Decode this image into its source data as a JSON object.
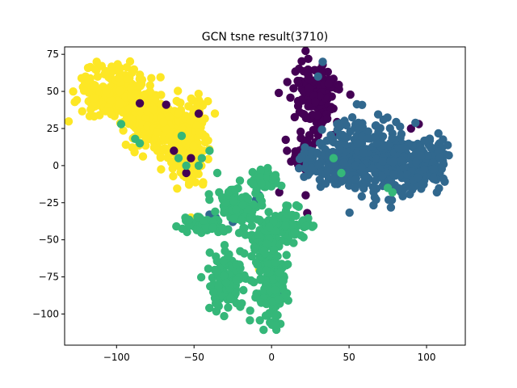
{
  "chart_data": {
    "type": "scatter",
    "title": "GCN tsne result(3710)",
    "xlabel": "",
    "ylabel": "",
    "xlim": [
      -133.5,
      125
    ],
    "ylim": [
      -121,
      80
    ],
    "xticks": [
      -100,
      -50,
      0,
      50,
      100
    ],
    "yticks": [
      75,
      50,
      25,
      0,
      -25,
      -50,
      -75,
      -100
    ],
    "xtick_labels": [
      "−100",
      "−50",
      "0",
      "50",
      "100"
    ],
    "ytick_labels": [
      "75",
      "50",
      "25",
      "0",
      "−25",
      "−50",
      "−75",
      "−100"
    ],
    "grid": false,
    "legend": "none",
    "series": [
      {
        "color": "#fde725",
        "clusters": [
          {
            "cx": -100,
            "cy": 48,
            "sx": 11,
            "sy": 8,
            "n": 260
          },
          {
            "cx": -78,
            "cy": 30,
            "sx": 9,
            "sy": 9,
            "n": 200
          },
          {
            "cx": -60,
            "cy": 20,
            "sx": 7,
            "sy": 10,
            "n": 140
          },
          {
            "cx": -52,
            "cy": 2,
            "sx": 5,
            "sy": 7,
            "n": 70
          },
          {
            "cx": -48,
            "cy": 30,
            "sx": 4,
            "sy": 7,
            "n": 40
          }
        ],
        "points": [
          [
            -120,
            60
          ],
          [
            -118,
            58
          ],
          [
            -52,
            -35
          ],
          [
            -8,
            -70
          ],
          [
            -47,
            22
          ],
          [
            -44,
            10
          ]
        ]
      },
      {
        "color": "#440154",
        "clusters": [
          {
            "cx": 28,
            "cy": 48,
            "sx": 7,
            "sy": 10,
            "n": 170
          },
          {
            "cx": 20,
            "cy": 10,
            "sx": 5,
            "sy": 5,
            "n": 30
          }
        ],
        "points": [
          [
            -63,
            10
          ],
          [
            -55,
            -5
          ],
          [
            5,
            -18
          ],
          [
            23,
            -32
          ],
          [
            -52,
            5
          ],
          [
            -40,
            -38
          ],
          [
            -85,
            42
          ],
          [
            -68,
            41
          ],
          [
            90,
            25
          ],
          [
            95,
            28
          ],
          [
            80,
            12
          ],
          [
            15,
            5
          ],
          [
            22,
            -20
          ],
          [
            67,
            1
          ],
          [
            -47,
            35
          ],
          [
            10,
            10
          ],
          [
            33,
            68
          ]
        ]
      },
      {
        "color": "#31688e",
        "clusters": [
          {
            "cx": 50,
            "cy": 6,
            "sx": 9,
            "sy": 11,
            "n": 180
          },
          {
            "cx": 70,
            "cy": 5,
            "sx": 10,
            "sy": 12,
            "n": 170
          },
          {
            "cx": 95,
            "cy": 0,
            "sx": 9,
            "sy": 9,
            "n": 180
          },
          {
            "cx": 30,
            "cy": 2,
            "sx": 6,
            "sy": 6,
            "n": 50
          }
        ],
        "points": [
          [
            33,
            70
          ],
          [
            30,
            60
          ],
          [
            -8,
            -20
          ],
          [
            -25,
            -38
          ],
          [
            -40,
            -33
          ],
          [
            5,
            -88
          ],
          [
            2,
            -95
          ],
          [
            -36,
            -35
          ],
          [
            -10,
            -23
          ]
        ]
      },
      {
        "color": "#35b779",
        "clusters": [
          {
            "cx": -22,
            "cy": -28,
            "sx": 7,
            "sy": 8,
            "n": 110
          },
          {
            "cx": -45,
            "cy": -40,
            "sx": 5,
            "sy": 3,
            "n": 60
          },
          {
            "cx": -28,
            "cy": -78,
            "sx": 6,
            "sy": 11,
            "n": 120
          },
          {
            "cx": 0,
            "cy": -80,
            "sx": 5,
            "sy": 15,
            "n": 130
          },
          {
            "cx": 8,
            "cy": -40,
            "sx": 7,
            "sy": 5,
            "n": 90
          },
          {
            "cx": -5,
            "cy": -52,
            "sx": 5,
            "sy": 6,
            "n": 60
          },
          {
            "cx": -5,
            "cy": -10,
            "sx": 5,
            "sy": 4,
            "n": 50
          }
        ],
        "points": [
          [
            -45,
            5
          ],
          [
            -40,
            10
          ],
          [
            -97,
            28
          ],
          [
            -88,
            18
          ],
          [
            -85,
            15
          ],
          [
            -30,
            -25
          ],
          [
            15,
            -45
          ],
          [
            78,
            -18
          ],
          [
            75,
            -15
          ],
          [
            45,
            -5
          ],
          [
            -60,
            5
          ],
          [
            -58,
            20
          ],
          [
            -47,
            0
          ],
          [
            -55,
            0
          ],
          [
            -35,
            -5
          ],
          [
            40,
            5
          ]
        ]
      }
    ]
  }
}
